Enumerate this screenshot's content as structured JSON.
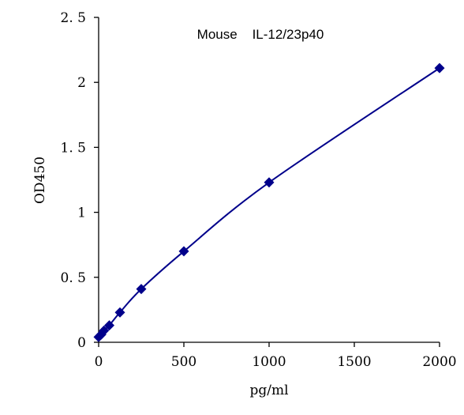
{
  "chart_data": {
    "type": "scatter",
    "title": "Mouse    IL-12/23p40",
    "xlabel": "pg/ml",
    "ylabel": "OD450",
    "xlim": [
      0,
      2000
    ],
    "ylim": [
      0,
      2.5
    ],
    "x_ticks": [
      "0",
      "500",
      "1000",
      "1500",
      "2000"
    ],
    "y_ticks": [
      "0",
      "0. 5",
      "1",
      "1. 5",
      "2",
      "2. 5"
    ],
    "grid": false,
    "legend": "none",
    "series": [
      {
        "marker": "diamond",
        "color": "#00008B",
        "line": "smooth",
        "points": [
          {
            "x": 0,
            "y": 0.04
          },
          {
            "x": 15.6,
            "y": 0.06
          },
          {
            "x": 31.25,
            "y": 0.09
          },
          {
            "x": 62.5,
            "y": 0.13
          },
          {
            "x": 125,
            "y": 0.23
          },
          {
            "x": 250,
            "y": 0.41
          },
          {
            "x": 500,
            "y": 0.7
          },
          {
            "x": 1000,
            "y": 1.23
          },
          {
            "x": 2000,
            "y": 2.11
          }
        ]
      }
    ]
  }
}
